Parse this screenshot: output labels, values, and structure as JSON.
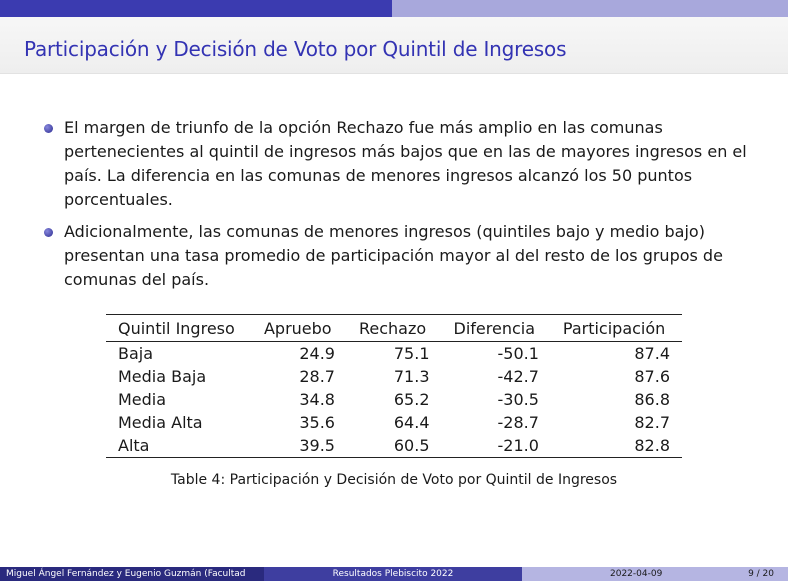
{
  "slide": {
    "title": "Participación y Decisión de Voto por Quintil de Ingresos",
    "bullets": [
      "El margen de triunfo de la opción Rechazo fue más amplio en las comunas pertenecientes al quintil de ingresos más bajos que en las de mayores ingresos en el país. La diferencia en las comunas de menores ingresos alcanzó los 50 puntos porcentuales.",
      "Adicionalmente, las comunas de menores ingresos (quintiles bajo y medio bajo) presentan una tasa promedio de participación mayor al del resto de los grupos de comunas del país."
    ]
  },
  "table": {
    "headers": [
      "Quintil Ingreso",
      "Apruebo",
      "Rechazo",
      "Diferencia",
      "Participación"
    ],
    "rows": [
      [
        "Baja",
        "24.9",
        "75.1",
        "-50.1",
        "87.4"
      ],
      [
        "Media Baja",
        "28.7",
        "71.3",
        "-42.7",
        "87.6"
      ],
      [
        "Media",
        "34.8",
        "65.2",
        "-30.5",
        "86.8"
      ],
      [
        "Media Alta",
        "35.6",
        "64.4",
        "-28.7",
        "82.7"
      ],
      [
        "Alta",
        "39.5",
        "60.5",
        "-21.0",
        "82.8"
      ]
    ],
    "caption": "Table 4: Participación y Decisión de Voto por Quintil de Ingresos"
  },
  "footer": {
    "authors": "Miguel Ángel Fernández y Eugenio Guzmán (Facultad",
    "short_title": "Resultados Plebiscito 2022",
    "date": "2022-04-09",
    "page": "9 / 20"
  },
  "colors": {
    "title": "#3333b3",
    "header_dark": "#3b3bb0",
    "header_light": "#a8a8dc",
    "footer_dark": "#2a2a7e",
    "footer_mid": "#3e3ea0",
    "footer_light": "#b5b5e2"
  }
}
